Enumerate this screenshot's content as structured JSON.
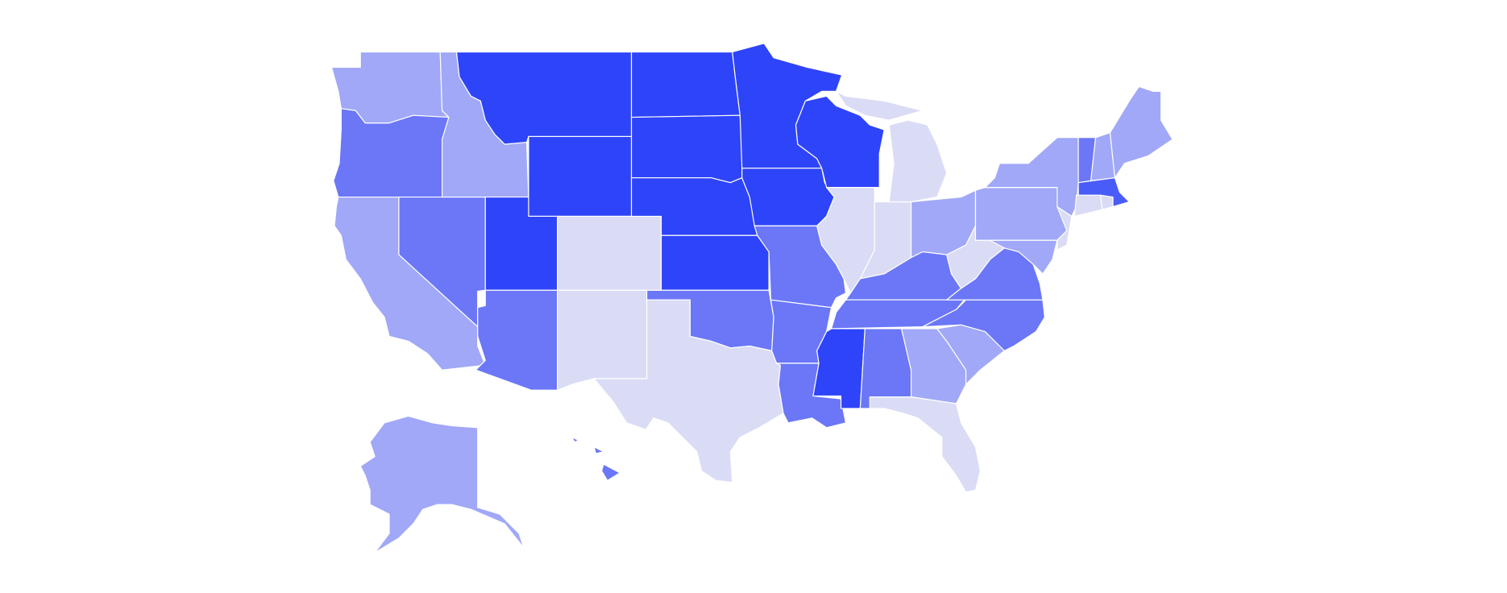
{
  "map": {
    "regions": [
      {
        "color": "#a0a8f7"
      },
      {
        "color": "#6b77f7"
      },
      {
        "color": "#a0a8f7"
      },
      {
        "color": "#6b77f7"
      },
      {
        "color": "#a0a8f7"
      },
      {
        "color": "#2e44f9"
      },
      {
        "color": "#2e44f9"
      },
      {
        "color": "#2e44f9"
      },
      {
        "color": "#dadcf6"
      },
      {
        "color": "#6b77f7"
      },
      {
        "color": "#dadcf6"
      },
      {
        "color": "#2e44f9"
      },
      {
        "color": "#2e44f9"
      },
      {
        "color": "#2e44f9"
      },
      {
        "color": "#2e44f9"
      },
      {
        "color": "#6b77f7"
      },
      {
        "color": "#dadcf6"
      },
      {
        "color": "#2e44f9"
      },
      {
        "color": "#2e44f9"
      },
      {
        "color": "#6b77f7"
      },
      {
        "color": "#6b77f7"
      },
      {
        "color": "#6b77f7"
      },
      {
        "color": "#2e44f9"
      },
      {
        "color": "#dadcf6"
      },
      {
        "color": "#dadcf6"
      },
      {
        "color": "#dadcf6"
      },
      {
        "color": "#dadcf6"
      },
      {
        "color": "#a0a8f7"
      },
      {
        "color": "#6b77f7"
      },
      {
        "color": "#6b77f7"
      },
      {
        "color": "#2e44f9"
      },
      {
        "color": "#6b77f7"
      },
      {
        "color": "#a0a8f7"
      },
      {
        "color": "#dadcf6"
      },
      {
        "color": "#a0a8f7"
      },
      {
        "color": "#6b77f7"
      },
      {
        "color": "#6b77f7"
      },
      {
        "color": "#dadcf6"
      },
      {
        "color": "#a0a8f7"
      },
      {
        "color": "#a0a8f7"
      },
      {
        "color": "#dadcf6"
      },
      {
        "color": "#a0a8f7"
      },
      {
        "color": "#6b77f7"
      },
      {
        "color": "#a0a8f7"
      },
      {
        "color": "#a0a8f7"
      },
      {
        "color": "#4a5cf8"
      },
      {
        "color": "#dadcf6"
      },
      {
        "color": "#dadcf6"
      },
      {
        "color": "#a0a8f7"
      },
      {
        "color": "#6b77f7"
      }
    ]
  }
}
